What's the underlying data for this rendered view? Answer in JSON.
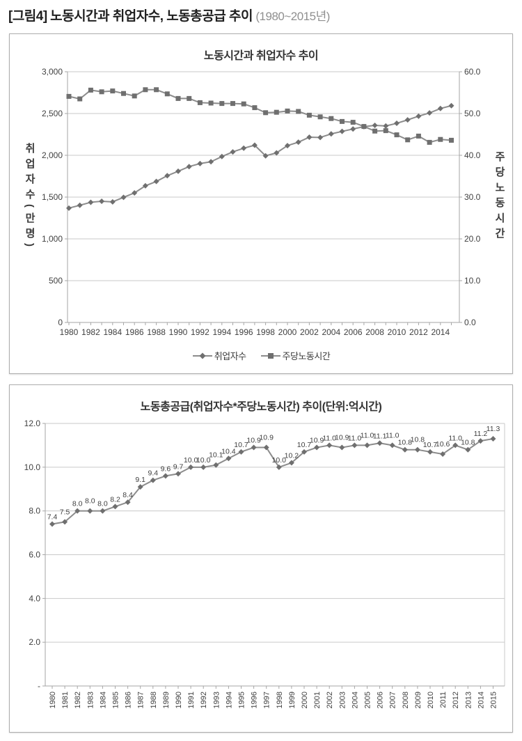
{
  "page": {
    "heading": {
      "label": "[그림4]",
      "title": "노동시간과 취업자수, 노동총공급 추이",
      "period": "(1980~2015년)"
    }
  },
  "colors": {
    "series_line": "#8c8c8c",
    "marker": "#6f6f6f",
    "grid": "#c9c9c9",
    "axis": "#a6a6a6",
    "tick_text": "#404040",
    "title_text": "#333333",
    "data_label": "#404040"
  },
  "chart_data": [
    {
      "type": "line",
      "title": "노동시간과 취업자수 추이",
      "x": [
        1980,
        1981,
        1982,
        1983,
        1984,
        1985,
        1986,
        1987,
        1988,
        1989,
        1990,
        1991,
        1992,
        1993,
        1994,
        1995,
        1996,
        1997,
        1998,
        1999,
        2000,
        2001,
        2002,
        2003,
        2004,
        2005,
        2006,
        2007,
        2008,
        2009,
        2010,
        2011,
        2012,
        2013,
        2014,
        2015
      ],
      "x_tick_labels": [
        "1980",
        "1982",
        "1984",
        "1986",
        "1988",
        "1990",
        "1992",
        "1994",
        "1996",
        "1998",
        "2000",
        "2002",
        "2004",
        "2006",
        "2008",
        "2010",
        "2012",
        "2014"
      ],
      "series": [
        {
          "name": "취업자수",
          "axis": "left",
          "marker": "diamond",
          "values": [
            1368,
            1402,
            1438,
            1450,
            1443,
            1497,
            1550,
            1635,
            1687,
            1756,
            1809,
            1865,
            1901,
            1923,
            1985,
            2041,
            2085,
            2121,
            1994,
            2029,
            2116,
            2157,
            2217,
            2214,
            2256,
            2286,
            2315,
            2343,
            2358,
            2351,
            2383,
            2424,
            2468,
            2507,
            2560,
            2594
          ]
        },
        {
          "name": "주당노동시간",
          "axis": "right",
          "marker": "square",
          "values": [
            54.1,
            53.5,
            55.6,
            55.2,
            55.4,
            54.8,
            54.2,
            55.7,
            55.7,
            54.7,
            53.6,
            53.6,
            52.6,
            52.5,
            52.4,
            52.4,
            52.3,
            51.4,
            50.2,
            50.3,
            50.6,
            50.5,
            49.6,
            49.2,
            48.8,
            48.1,
            47.9,
            46.9,
            45.8,
            45.9,
            44.9,
            43.7,
            44.6,
            43.1,
            43.8,
            43.6
          ]
        }
      ],
      "left_axis": {
        "label": "취업자수(만명)",
        "ticks": [
          "3,000",
          "2,500",
          "2,000",
          "1,500",
          "1,000",
          "500",
          "0"
        ],
        "min": 0,
        "max": 3000
      },
      "right_axis": {
        "label": "주당노동시간",
        "ticks": [
          "60.0",
          "50.0",
          "40.0",
          "30.0",
          "20.0",
          "10.0",
          "0.0"
        ],
        "min": 0,
        "max": 60
      },
      "legend": [
        "취업자수",
        "주당노동시간"
      ],
      "legend_position": "bottom",
      "grid": true
    },
    {
      "type": "line",
      "title": "노동총공급(취업자수*주당노동시간) 추이(단위:억시간)",
      "x": [
        "1980",
        "1981",
        "1982",
        "1983",
        "1984",
        "1985",
        "1986",
        "1987",
        "1988",
        "1989",
        "1990",
        "1991",
        "1992",
        "1993",
        "1994",
        "1995",
        "1996",
        "1997",
        "1998",
        "1999",
        "2000",
        "2001",
        "2002",
        "2003",
        "2004",
        "2005",
        "2006",
        "2007",
        "2008",
        "2009",
        "2010",
        "2011",
        "2012",
        "2013",
        "2014",
        "2015"
      ],
      "values": [
        7.4,
        7.5,
        8.0,
        8.0,
        8.0,
        8.2,
        8.4,
        9.1,
        9.4,
        9.6,
        9.7,
        10.0,
        10.0,
        10.1,
        10.4,
        10.7,
        10.9,
        10.9,
        10.0,
        10.2,
        10.7,
        10.9,
        11.0,
        10.9,
        11.0,
        11.0,
        11.1,
        11.0,
        10.8,
        10.8,
        10.7,
        10.6,
        11.0,
        10.8,
        11.2,
        11.3
      ],
      "data_labels": [
        "7.4",
        "7.5",
        "8.0",
        "8.0",
        "8.0",
        "8.2",
        "8.4",
        "9.1",
        "9.4",
        "9.6",
        "9.7",
        "10.0",
        "10.0",
        "10.1",
        "10.4",
        "10.7",
        "10.9",
        "10.9",
        "10.0",
        "10.2",
        "10.7",
        "10.9",
        "11.0",
        "10.9",
        "11.0",
        "11.0",
        "11.1",
        "11.0",
        "10.8",
        "10.8",
        "10.7",
        "10.6",
        "11.0",
        "10.8",
        "11.2",
        "11.3"
      ],
      "y_axis": {
        "ticks": [
          "12.0",
          "10.0",
          "8.0",
          "6.0",
          "4.0",
          "2.0",
          "-"
        ],
        "min": 0,
        "max": 12
      },
      "grid": true,
      "marker": "diamond"
    }
  ]
}
